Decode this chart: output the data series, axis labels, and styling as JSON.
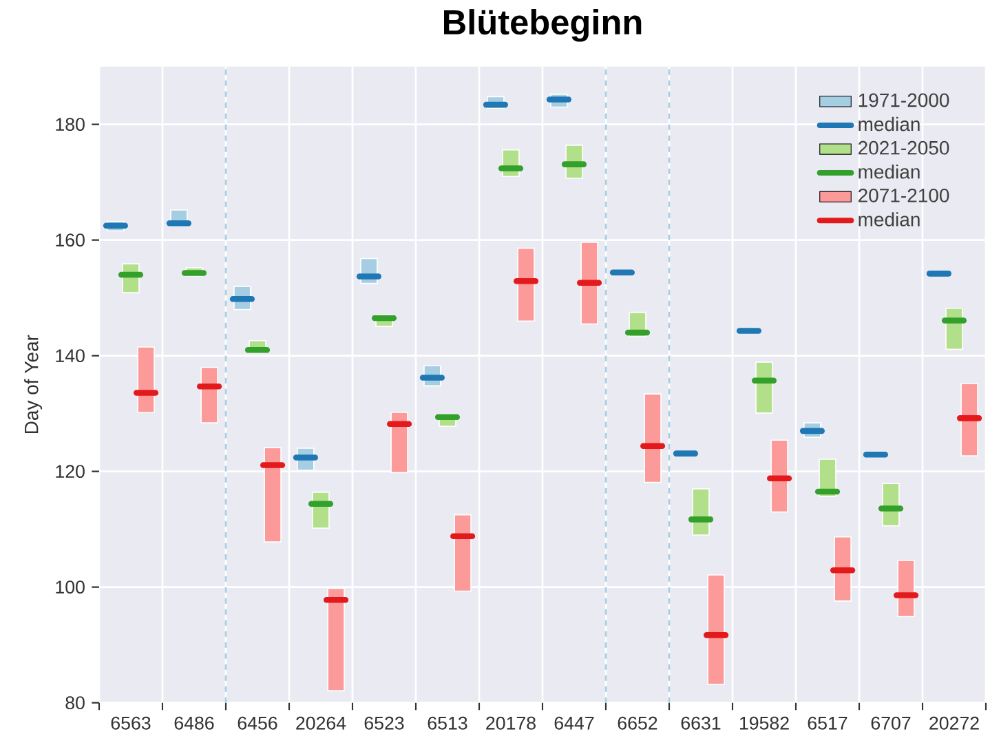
{
  "chart_data": {
    "type": "box",
    "title": "Blütebeginn",
    "ylabel": "Day of Year",
    "categories": [
      "6563",
      "6486",
      "6456",
      "20264",
      "6523",
      "6513",
      "20178",
      "6447",
      "6652",
      "6631",
      "19582",
      "6517",
      "6707",
      "20272"
    ],
    "ylim": [
      80,
      190
    ],
    "yticks": [
      80,
      100,
      120,
      140,
      160,
      180
    ],
    "grid": true,
    "legend": "top right",
    "annotations": [
      "median",
      "median",
      "median"
    ],
    "series": [
      {
        "name": "1971-2000",
        "color": "#a6cee3",
        "boxes": [
          {
            "low": 161.6,
            "q1": 161.6,
            "median": 162.5,
            "q3": 163.2,
            "high": 163.2
          },
          {
            "low": 162.5,
            "q1": 162.5,
            "median": 162.9,
            "q3": 165.2,
            "high": 165.2
          },
          {
            "low": 148.0,
            "q1": 148.0,
            "median": 149.8,
            "q3": 152.0,
            "high": 152.0
          },
          {
            "low": 120.2,
            "q1": 120.2,
            "median": 122.4,
            "q3": 124.0,
            "high": 124.0
          },
          {
            "low": 152.5,
            "q1": 152.5,
            "median": 153.7,
            "q3": 156.8,
            "high": 156.8
          },
          {
            "low": 134.8,
            "q1": 134.8,
            "median": 136.2,
            "q3": 138.3,
            "high": 138.3
          },
          {
            "low": 182.8,
            "q1": 182.8,
            "median": 183.4,
            "q3": 184.8,
            "high": 184.8
          },
          {
            "low": 183.0,
            "q1": 183.0,
            "median": 184.3,
            "q3": 185.2,
            "high": 185.2
          },
          {
            "low": 154.0,
            "q1": 154.0,
            "median": 154.4,
            "q3": 154.6,
            "high": 154.6
          },
          {
            "low": 122.8,
            "q1": 122.8,
            "median": 123.1,
            "q3": 123.4,
            "high": 123.4
          },
          {
            "low": 144.0,
            "q1": 144.0,
            "median": 144.3,
            "q3": 144.6,
            "high": 144.6
          },
          {
            "low": 125.9,
            "q1": 125.9,
            "median": 127.0,
            "q3": 128.4,
            "high": 128.4
          },
          {
            "low": 122.5,
            "q1": 122.5,
            "median": 122.9,
            "q3": 123.3,
            "high": 123.3
          },
          {
            "low": 154.0,
            "q1": 154.0,
            "median": 154.2,
            "q3": 154.5,
            "high": 154.5
          }
        ]
      },
      {
        "name": "2021-2050",
        "color": "#b2df8a",
        "boxes": [
          {
            "low": 150.9,
            "q1": 150.9,
            "median": 154.0,
            "q3": 155.9,
            "high": 155.9
          },
          {
            "low": 153.8,
            "q1": 153.8,
            "median": 154.3,
            "q3": 155.2,
            "high": 155.2
          },
          {
            "low": 140.5,
            "q1": 140.5,
            "median": 141.0,
            "q3": 142.6,
            "high": 142.6
          },
          {
            "low": 110.2,
            "q1": 110.2,
            "median": 114.4,
            "q3": 116.4,
            "high": 116.4
          },
          {
            "low": 145.1,
            "q1": 145.1,
            "median": 146.5,
            "q3": 147.1,
            "high": 147.1
          },
          {
            "low": 127.8,
            "q1": 127.8,
            "median": 129.4,
            "q3": 129.8,
            "high": 129.8
          },
          {
            "low": 171.0,
            "q1": 171.0,
            "median": 172.4,
            "q3": 175.6,
            "high": 175.6
          },
          {
            "low": 170.7,
            "q1": 170.7,
            "median": 173.1,
            "q3": 176.4,
            "high": 176.4
          },
          {
            "low": 143.3,
            "q1": 143.3,
            "median": 144.0,
            "q3": 147.5,
            "high": 147.5
          },
          {
            "low": 109.0,
            "q1": 109.0,
            "median": 111.7,
            "q3": 117.0,
            "high": 117.0
          },
          {
            "low": 130.1,
            "q1": 130.1,
            "median": 135.7,
            "q3": 138.9,
            "high": 138.9
          },
          {
            "low": 115.7,
            "q1": 115.7,
            "median": 116.5,
            "q3": 122.1,
            "high": 122.1
          },
          {
            "low": 110.6,
            "q1": 110.6,
            "median": 113.6,
            "q3": 117.9,
            "high": 117.9
          },
          {
            "low": 141.1,
            "q1": 141.1,
            "median": 146.1,
            "q3": 148.2,
            "high": 148.2
          }
        ]
      },
      {
        "name": "2071-2100",
        "color": "#fb9a99",
        "boxes": [
          {
            "low": 130.2,
            "q1": 130.2,
            "median": 133.6,
            "q3": 141.5,
            "high": 141.5
          },
          {
            "low": 128.4,
            "q1": 128.4,
            "median": 134.7,
            "q3": 138.0,
            "high": 138.0
          },
          {
            "low": 107.8,
            "q1": 107.8,
            "median": 121.1,
            "q3": 124.1,
            "high": 124.1
          },
          {
            "low": 82.1,
            "q1": 82.1,
            "median": 97.8,
            "q3": 99.8,
            "high": 99.8
          },
          {
            "low": 119.8,
            "q1": 119.8,
            "median": 128.2,
            "q3": 130.2,
            "high": 130.2
          },
          {
            "low": 99.3,
            "q1": 99.3,
            "median": 108.8,
            "q3": 112.5,
            "high": 112.5
          },
          {
            "low": 146.0,
            "q1": 146.0,
            "median": 152.9,
            "q3": 158.6,
            "high": 158.6
          },
          {
            "low": 145.5,
            "q1": 145.5,
            "median": 152.6,
            "q3": 159.6,
            "high": 159.6
          },
          {
            "low": 118.1,
            "q1": 118.1,
            "median": 124.4,
            "q3": 133.4,
            "high": 133.4
          },
          {
            "low": 83.2,
            "q1": 83.2,
            "median": 91.7,
            "q3": 102.1,
            "high": 102.1
          },
          {
            "low": 113.0,
            "q1": 113.0,
            "median": 118.8,
            "q3": 125.4,
            "high": 125.4
          },
          {
            "low": 97.6,
            "q1": 97.6,
            "median": 102.9,
            "q3": 108.7,
            "high": 108.7
          },
          {
            "low": 94.9,
            "q1": 94.9,
            "median": 98.6,
            "q3": 104.6,
            "high": 104.6
          },
          {
            "low": 122.7,
            "q1": 122.7,
            "median": 129.2,
            "q3": 135.2,
            "high": 135.2
          }
        ]
      }
    ]
  }
}
